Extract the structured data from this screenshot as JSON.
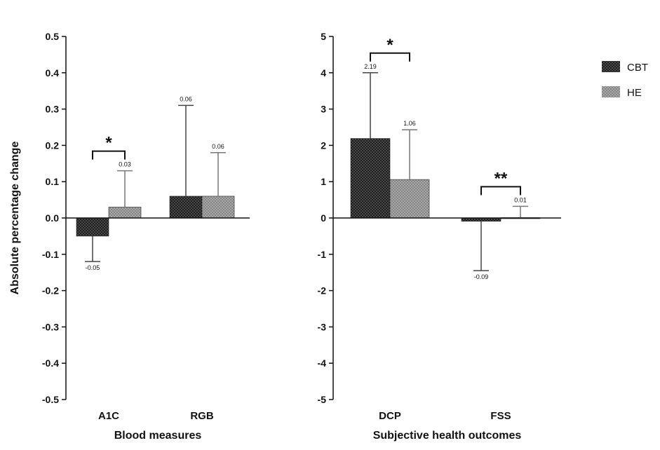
{
  "chart_data": [
    {
      "type": "bar",
      "categories": [
        "A1C",
        "RGB"
      ],
      "series": [
        {
          "name": "CBT",
          "values": [
            -0.05,
            0.06
          ],
          "error_upper": [
            -0.05,
            0.31
          ],
          "error_lower": [
            -0.12,
            0.06
          ]
        },
        {
          "name": "HE",
          "values": [
            0.03,
            0.06
          ],
          "error_upper": [
            0.13,
            0.18
          ],
          "error_lower": [
            0.03,
            0.06
          ]
        }
      ],
      "data_labels": [
        [
          "-0.05",
          "0.06"
        ],
        [
          "0.03",
          "0.06"
        ]
      ],
      "xlabel": "Blood measures",
      "ylabel": "Absolute percentage change",
      "ylim": [
        -0.5,
        0.5
      ],
      "yticks": [
        "0.5",
        "0.4",
        "0.3",
        "0.2",
        "0.1",
        "0.0",
        "-0.1",
        "-0.2",
        "-0.3",
        "-0.4",
        "-0.5"
      ],
      "significance": [
        {
          "category": "A1C",
          "mark": "*"
        }
      ]
    },
    {
      "type": "bar",
      "categories": [
        "DCP",
        "FSS"
      ],
      "series": [
        {
          "name": "CBT",
          "values": [
            2.19,
            -0.09
          ],
          "error_upper": [
            4.0,
            -0.09
          ],
          "error_lower": [
            2.19,
            -1.45
          ]
        },
        {
          "name": "HE",
          "values": [
            1.06,
            0.01
          ],
          "error_upper": [
            2.43,
            0.32
          ],
          "error_lower": [
            1.06,
            0.01
          ]
        }
      ],
      "data_labels": [
        [
          "2.19",
          "-0.09"
        ],
        [
          "1.06",
          "0.01"
        ]
      ],
      "xlabel": "Subjective health outcomes",
      "ylabel": "",
      "ylim": [
        -5,
        5
      ],
      "yticks": [
        "5",
        "4",
        "3",
        "2",
        "1",
        "0",
        "-1",
        "-2",
        "-3",
        "-4",
        "-5"
      ],
      "significance": [
        {
          "category": "DCP",
          "mark": "*"
        },
        {
          "category": "FSS",
          "mark": "**"
        }
      ]
    }
  ],
  "legend": [
    {
      "label": "CBT",
      "color": "#222222"
    },
    {
      "label": "HE",
      "color": "#9a9a9a"
    }
  ],
  "legend_position": "top-right"
}
